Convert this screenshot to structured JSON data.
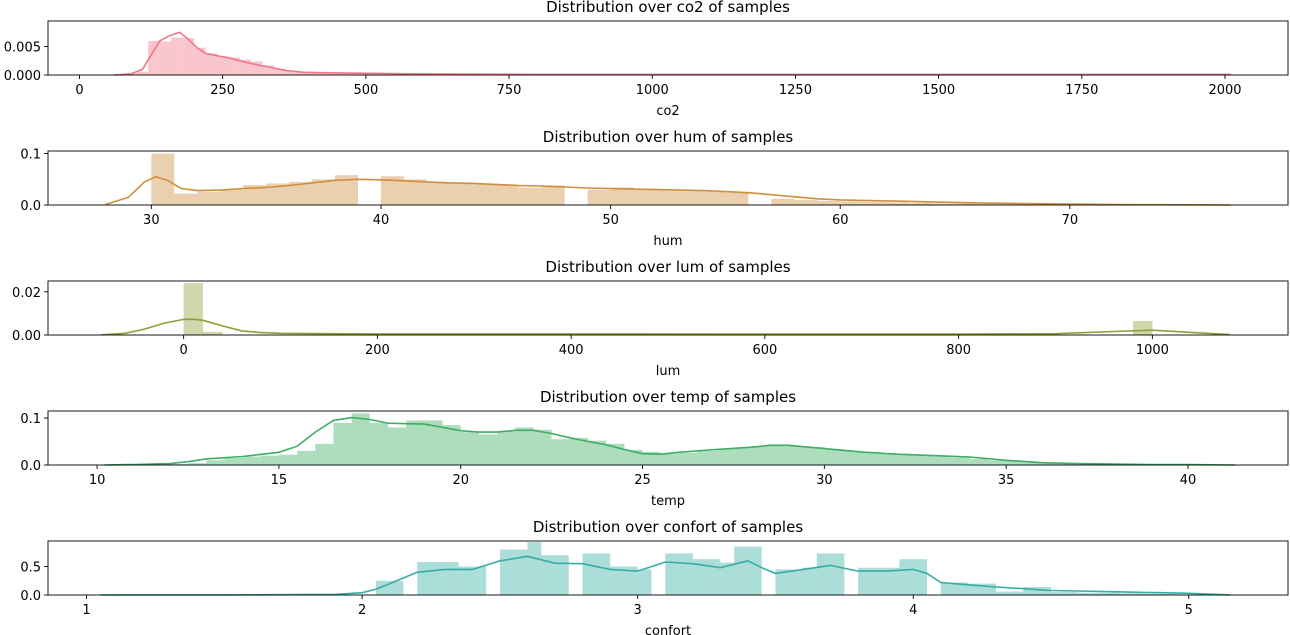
{
  "chart_data": [
    {
      "type": "histogram+kde",
      "title": "Distribution over co2 of samples",
      "xlabel": "co2",
      "ylabel": "",
      "color": "#f0768a",
      "xlim": [
        -55,
        2110
      ],
      "ylim": [
        0,
        0.0095
      ],
      "xticks": [
        0,
        250,
        500,
        750,
        1000,
        1250,
        1500,
        1750,
        2000
      ],
      "xtick_labels": [
        "0",
        "250",
        "500",
        "750",
        "1000",
        "1250",
        "1500",
        "1750",
        "2000"
      ],
      "yticks": [
        0,
        0.005
      ],
      "ytick_labels": [
        "0.000",
        "0.005"
      ],
      "bin_edges": [
        60,
        80,
        100,
        120,
        140,
        160,
        180,
        200,
        220,
        240,
        260,
        280,
        300,
        320,
        340,
        360,
        380,
        400,
        420,
        440,
        460,
        480,
        500,
        520,
        540,
        560,
        580,
        600,
        620,
        640,
        660,
        680,
        700,
        720,
        740,
        760,
        780,
        800,
        820,
        840,
        860,
        880,
        900,
        920,
        940,
        960,
        980,
        1000,
        1020,
        1040,
        1060,
        1080,
        1100,
        1120,
        1140,
        1160,
        1180,
        1200,
        1220,
        1240,
        1260,
        1280,
        1300,
        1320,
        1340,
        1360,
        1380,
        1400,
        1420,
        1440,
        1460,
        1480,
        1500,
        1520,
        1540,
        1560,
        1580,
        1600,
        1620,
        1640,
        1660,
        1680,
        1700,
        1720,
        1740,
        1760,
        1780,
        1800,
        1820,
        1840,
        1860,
        1880,
        1900,
        1920,
        1940,
        1960,
        1980,
        2000,
        2020
      ],
      "histogram": [
        0,
        0.0003,
        0.0006,
        0.006,
        0.0059,
        0.0066,
        0.0065,
        0.0048,
        0.0038,
        0.0033,
        0.0031,
        0.0027,
        0.0024,
        0.0017,
        0.0011,
        0.0007,
        0.0005,
        0.0004,
        0.0003,
        0.0003,
        0.0003,
        0.0002,
        0.0002,
        0.0002,
        0.0002,
        0.0001,
        0.0001,
        0.0001,
        0.0001,
        0.0001,
        0.0001,
        0.0001,
        0.0001,
        0.0001,
        0.0001,
        0.0001,
        0.0001,
        0.0001,
        0.0001,
        0.0001,
        0.0001,
        0.0001,
        0.0001,
        0.0001,
        0.0001,
        0.0001,
        0.0001,
        0.0001,
        0.0001,
        0.0001,
        0.0001,
        0.0001,
        0.0001,
        0.0001,
        0.0001,
        0.0001,
        0.0001,
        0.0001,
        0.0001,
        0.0001,
        0.0001,
        0.0001,
        0.0001,
        0.0001,
        0.0001,
        0.0001,
        0.0001,
        0.0001,
        0.0001,
        0.0001,
        0.0001,
        0.0001,
        0.0001,
        0.0001,
        0.0001,
        0.0001,
        0.0001,
        0.0001,
        0.0001,
        0.0001,
        0.0001,
        0.0001,
        0.0001,
        0.0001,
        0.0001,
        0.0001,
        0.0001,
        0.0001,
        0.0001,
        0.0001,
        0.0001,
        0.0001,
        0.0001,
        0.0001,
        0.0001,
        0.0001,
        0.0001,
        0.0001,
        0.0001
      ],
      "kde_x": [
        60,
        90,
        110,
        125,
        140,
        155,
        165,
        175,
        190,
        205,
        220,
        240,
        260,
        280,
        300,
        330,
        360,
        390,
        420,
        500,
        600,
        800,
        1000,
        1500,
        2010
      ],
      "kde_y": [
        0,
        0.0002,
        0.001,
        0.0035,
        0.006,
        0.0068,
        0.0072,
        0.0075,
        0.0063,
        0.0048,
        0.0038,
        0.0034,
        0.003,
        0.0025,
        0.002,
        0.0014,
        0.0008,
        0.0005,
        0.0004,
        0.0003,
        0.0002,
        0.0001,
        0.0001,
        0.0001,
        0.0001
      ]
    },
    {
      "type": "histogram+kde",
      "title": "Distribution over hum of samples",
      "xlabel": "hum",
      "ylabel": "",
      "color": "#cd8f3e",
      "xlim": [
        25.5,
        79.5
      ],
      "ylim": [
        0,
        0.105
      ],
      "xticks": [
        30,
        40,
        50,
        60,
        70
      ],
      "xtick_labels": [
        "30",
        "40",
        "50",
        "60",
        "70"
      ],
      "yticks": [
        0,
        0.1
      ],
      "ytick_labels": [
        "0.0",
        "0.1"
      ],
      "bin_edges": [
        28,
        29,
        30,
        31,
        32,
        33,
        34,
        35,
        36,
        37,
        38,
        39,
        40,
        41,
        42,
        43,
        44,
        45,
        46,
        47,
        48,
        49,
        50,
        51,
        52,
        53,
        54,
        55,
        56,
        57,
        58,
        59,
        60,
        61,
        62,
        63,
        64,
        65,
        66,
        67,
        68,
        69,
        70,
        71,
        72,
        73,
        74,
        75,
        76,
        77
      ],
      "histogram": [
        0,
        0,
        0.1,
        0.022,
        0.026,
        0.03,
        0.039,
        0.042,
        0.045,
        0.05,
        0.058,
        0,
        0.056,
        0.05,
        0.045,
        0.044,
        0.04,
        0.039,
        0.034,
        0.038,
        0,
        0.03,
        0.034,
        0.03,
        0.028,
        0.027,
        0.026,
        0.024,
        0,
        0.012,
        0.01,
        0.008,
        0.007,
        0.006,
        0.005,
        0.004,
        0.003,
        0.003,
        0.002,
        0.002,
        0.002,
        0.001,
        0.001,
        0.001,
        0.001,
        0.001,
        0.001,
        0.001,
        0.001
      ],
      "kde_x": [
        28,
        29,
        29.7,
        30.2,
        30.7,
        31.3,
        32,
        33,
        34,
        35,
        36,
        37,
        38,
        39,
        40,
        41,
        42,
        43,
        44,
        45,
        46,
        47,
        48,
        49,
        50,
        51,
        52,
        53,
        54,
        55,
        56,
        57,
        58,
        59,
        60,
        62,
        64,
        66,
        68,
        70,
        72,
        74,
        77
      ],
      "kde_y": [
        0.001,
        0.015,
        0.045,
        0.055,
        0.048,
        0.032,
        0.028,
        0.029,
        0.032,
        0.034,
        0.038,
        0.043,
        0.048,
        0.05,
        0.049,
        0.047,
        0.045,
        0.043,
        0.042,
        0.04,
        0.038,
        0.037,
        0.035,
        0.033,
        0.032,
        0.031,
        0.03,
        0.029,
        0.028,
        0.026,
        0.024,
        0.02,
        0.016,
        0.012,
        0.01,
        0.008,
        0.006,
        0.004,
        0.003,
        0.002,
        0.001,
        0.0005,
        0
      ]
    },
    {
      "type": "histogram+kde",
      "title": "Distribution over lum of samples",
      "xlabel": "lum",
      "ylabel": "",
      "color": "#8da036",
      "xlim": [
        -140,
        1140
      ],
      "ylim": [
        0,
        0.025
      ],
      "xticks": [
        0,
        200,
        400,
        600,
        800,
        1000
      ],
      "xtick_labels": [
        "0",
        "200",
        "400",
        "600",
        "800",
        "1000"
      ],
      "yticks": [
        0,
        0.02
      ],
      "ytick_labels": [
        "0.00",
        "0.02"
      ],
      "bins": [
        {
          "x0": 0,
          "x1": 20,
          "y": 0.024
        },
        {
          "x0": 20,
          "x1": 40,
          "y": 0.0015
        },
        {
          "x0": 980,
          "x1": 1000,
          "y": 0.0065
        }
      ],
      "kde_x": [
        -85,
        -60,
        -40,
        -20,
        0,
        10,
        20,
        40,
        60,
        80,
        100,
        150,
        200,
        400,
        600,
        800,
        900,
        960,
        1000,
        1040,
        1080
      ],
      "kde_y": [
        0.0001,
        0.0008,
        0.0028,
        0.0055,
        0.0072,
        0.0073,
        0.0068,
        0.0042,
        0.0019,
        0.0011,
        0.0008,
        0.0006,
        0.0005,
        0.0005,
        0.0004,
        0.0004,
        0.0006,
        0.0016,
        0.0022,
        0.0012,
        0.0002
      ]
    },
    {
      "type": "histogram+kde",
      "title": "Distribution over temp of samples",
      "xlabel": "temp",
      "ylabel": "",
      "color": "#3dae64",
      "xlim": [
        8.65,
        42.75
      ],
      "ylim": [
        0,
        0.115
      ],
      "xticks": [
        10,
        15,
        20,
        25,
        30,
        35,
        40
      ],
      "xtick_labels": [
        "10",
        "15",
        "20",
        "25",
        "30",
        "35",
        "40"
      ],
      "yticks": [
        0,
        0.1
      ],
      "ytick_labels": [
        "0.0",
        "0.1"
      ],
      "bin_edges": [
        10,
        10.5,
        11,
        11.5,
        12,
        12.5,
        13,
        13.5,
        14,
        14.5,
        15,
        15.5,
        16,
        16.5,
        17,
        17.5,
        18,
        18.5,
        19,
        19.5,
        20,
        20.5,
        21,
        21.5,
        22,
        22.5,
        23,
        23.5,
        24,
        24.5,
        25,
        25.5,
        26,
        26.5,
        27,
        27.5,
        28,
        28.5,
        29,
        29.5,
        30,
        30.5,
        31,
        31.5,
        32,
        32.5,
        33,
        33.5,
        34,
        34.5,
        35,
        35.5,
        36,
        36.5,
        37,
        37.5,
        38,
        38.5,
        39,
        39.5,
        40,
        40.5,
        41
      ],
      "histogram": [
        0,
        0,
        0,
        0.001,
        0.002,
        0.004,
        0.01,
        0.015,
        0.018,
        0.02,
        0.022,
        0.03,
        0.045,
        0.09,
        0.11,
        0.09,
        0.08,
        0.095,
        0.095,
        0.085,
        0.07,
        0.065,
        0.072,
        0.08,
        0.075,
        0.055,
        0.058,
        0.052,
        0.045,
        0.032,
        0.028,
        0.024,
        0.026,
        0.03,
        0.034,
        0.036,
        0.04,
        0.04,
        0.04,
        0.038,
        0.034,
        0.03,
        0.028,
        0.025,
        0.022,
        0.02,
        0.018,
        0.016,
        0.013,
        0.01,
        0.008,
        0.006,
        0.005,
        0.004,
        0.003,
        0.002,
        0.002,
        0.001,
        0.001,
        0.001,
        0.001,
        0
      ],
      "kde_x": [
        10.2,
        11,
        12,
        12.5,
        13,
        14,
        15,
        15.5,
        16,
        16.5,
        17,
        17.5,
        18,
        18.5,
        19,
        19.5,
        20,
        20.5,
        21,
        21.5,
        22,
        22.5,
        23,
        23.5,
        24,
        24.5,
        25,
        25.5,
        26,
        27,
        28,
        28.5,
        29,
        30,
        31,
        32,
        33,
        34,
        35,
        36,
        37,
        38,
        39,
        40,
        41.3
      ],
      "kde_y": [
        0,
        0.001,
        0.003,
        0.007,
        0.013,
        0.018,
        0.027,
        0.04,
        0.07,
        0.095,
        0.101,
        0.097,
        0.089,
        0.088,
        0.087,
        0.08,
        0.073,
        0.07,
        0.07,
        0.074,
        0.074,
        0.067,
        0.058,
        0.05,
        0.043,
        0.033,
        0.024,
        0.023,
        0.027,
        0.033,
        0.038,
        0.042,
        0.042,
        0.035,
        0.028,
        0.023,
        0.02,
        0.017,
        0.01,
        0.005,
        0.003,
        0.002,
        0.001,
        0.001,
        0
      ]
    },
    {
      "type": "histogram+kde",
      "title": "Distribution over confort of samples",
      "xlabel": "confort",
      "ylabel": "",
      "color": "#36ada4",
      "xlim": [
        0.86,
        5.36
      ],
      "ylim": [
        0,
        0.95
      ],
      "xticks": [
        1,
        2,
        3,
        4,
        5
      ],
      "xtick_labels": [
        "1",
        "2",
        "3",
        "4",
        "5"
      ],
      "yticks": [
        0,
        0.5
      ],
      "ytick_labels": [
        "0.0",
        "0.5"
      ],
      "bin_edges": [
        2.0,
        2.05,
        2.1,
        2.15,
        2.2,
        2.25,
        2.3,
        2.35,
        2.4,
        2.45,
        2.5,
        2.55,
        2.6,
        2.65,
        2.7,
        2.75,
        2.8,
        2.85,
        2.9,
        2.95,
        3.0,
        3.05,
        3.1,
        3.15,
        3.2,
        3.25,
        3.3,
        3.35,
        3.4,
        3.45,
        3.5,
        3.55,
        3.6,
        3.65,
        3.7,
        3.75,
        3.8,
        3.85,
        3.9,
        3.95,
        4.0,
        4.05,
        4.1,
        4.15,
        4.2,
        4.25,
        4.3,
        4.35,
        4.4,
        4.45,
        4.5,
        4.55,
        4.6,
        4.65,
        4.7,
        4.75,
        4.8,
        4.85,
        4.9,
        4.95,
        5.0,
        5.05,
        5.1,
        5.15
      ],
      "histogram": [
        0,
        0.25,
        0.25,
        0,
        0.58,
        0.58,
        0.58,
        0.5,
        0.5,
        0,
        0.8,
        0.8,
        0.93,
        0.7,
        0.7,
        0,
        0.73,
        0.73,
        0.5,
        0.5,
        0.45,
        0,
        0.73,
        0.73,
        0.63,
        0.63,
        0.57,
        0.85,
        0.85,
        0,
        0.45,
        0.45,
        0.48,
        0.73,
        0.73,
        0,
        0.48,
        0.48,
        0.48,
        0.63,
        0.63,
        0,
        0.22,
        0.22,
        0.2,
        0.2,
        0.06,
        0.06,
        0.14,
        0.14,
        0.05,
        0.05,
        0.04,
        0.04,
        0.04,
        0.03,
        0.03,
        0.02,
        0.02,
        0.01,
        0.01,
        0.01,
        0.01
      ],
      "kde_x": [
        1.05,
        1.5,
        1.9,
        2.0,
        2.05,
        2.1,
        2.15,
        2.2,
        2.3,
        2.4,
        2.5,
        2.6,
        2.7,
        2.8,
        2.9,
        3.0,
        3.05,
        3.1,
        3.2,
        3.3,
        3.4,
        3.45,
        3.5,
        3.6,
        3.7,
        3.8,
        3.9,
        4.0,
        4.05,
        4.1,
        4.2,
        4.3,
        4.4,
        4.5,
        4.6,
        4.7,
        4.8,
        4.9,
        5.0,
        5.1,
        5.15
      ],
      "kde_y": [
        0,
        0.001,
        0.01,
        0.04,
        0.1,
        0.2,
        0.3,
        0.4,
        0.45,
        0.45,
        0.6,
        0.68,
        0.56,
        0.55,
        0.45,
        0.42,
        0.5,
        0.58,
        0.55,
        0.48,
        0.6,
        0.48,
        0.38,
        0.45,
        0.52,
        0.42,
        0.42,
        0.45,
        0.38,
        0.22,
        0.18,
        0.14,
        0.11,
        0.08,
        0.07,
        0.06,
        0.05,
        0.04,
        0.03,
        0.01,
        0
      ]
    }
  ]
}
